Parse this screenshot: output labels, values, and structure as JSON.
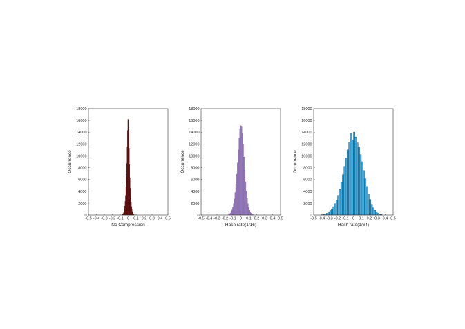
{
  "chart_data": [
    {
      "type": "bar",
      "xlabel": "No Compression",
      "ylabel": "Occurrence",
      "xlim": [
        -0.5,
        0.5
      ],
      "ylim": [
        0,
        18000
      ],
      "xticks": [
        "-0.5",
        "-0.4",
        "-0.3",
        "-0.2",
        "-0.1",
        "0",
        "0.1",
        "0.2",
        "0.3",
        "0.4",
        "0.5"
      ],
      "yticks": [
        "0",
        "2000",
        "4000",
        "6000",
        "8000",
        "10000",
        "12000",
        "14000",
        "16000",
        "18000"
      ],
      "grid": false,
      "color": "#b41e1e",
      "edge_color": "#3a0808",
      "bins": {
        "centers": [
          -0.0725,
          -0.0675,
          -0.0625,
          -0.0575,
          -0.0525,
          -0.0475,
          -0.0425,
          -0.0375,
          -0.0325,
          -0.0275,
          -0.0225,
          -0.0175,
          -0.0125,
          -0.0075,
          -0.0025,
          0.0025,
          0.0075,
          0.0125,
          0.0175,
          0.0225,
          0.0275,
          0.0325,
          0.0375,
          0.0425,
          0.0475,
          0.0525,
          0.0575,
          0.0625,
          0.0675,
          0.0725
        ],
        "values": [
          80,
          150,
          250,
          400,
          650,
          1000,
          1500,
          2300,
          3300,
          4700,
          6500,
          8700,
          11500,
          14300,
          16200,
          16100,
          14200,
          11300,
          8500,
          6300,
          4500,
          3200,
          2200,
          1400,
          950,
          600,
          380,
          230,
          140,
          70
        ]
      }
    },
    {
      "type": "bar",
      "xlabel": "Hash rate(1/16)",
      "ylabel": "Occurrence",
      "xlim": [
        -0.5,
        0.5
      ],
      "ylim": [
        0,
        18000
      ],
      "xticks": [
        "-0.5",
        "-0.4",
        "-0.3",
        "-0.2",
        "-0.1",
        "0",
        "0.1",
        "0.2",
        "0.3",
        "0.4",
        "0.5"
      ],
      "yticks": [
        "0",
        "2000",
        "4000",
        "6000",
        "8000",
        "10000",
        "12000",
        "14000",
        "16000",
        "18000"
      ],
      "grid": false,
      "color": "#9b7fbf",
      "edge_color": "#7a5f9f",
      "bins": {
        "centers": [
          -0.15,
          -0.14,
          -0.13,
          -0.12,
          -0.11,
          -0.1,
          -0.09,
          -0.08,
          -0.07,
          -0.06,
          -0.05,
          -0.04,
          -0.03,
          -0.02,
          -0.01,
          0.0,
          0.01,
          0.02,
          0.03,
          0.04,
          0.05,
          0.06,
          0.07,
          0.08,
          0.09,
          0.1,
          0.11,
          0.12,
          0.13,
          0.14,
          0.15
        ],
        "values": [
          100,
          200,
          350,
          550,
          850,
          1300,
          1900,
          2700,
          3800,
          5200,
          6900,
          8800,
          11000,
          13000,
          14600,
          15100,
          14900,
          13800,
          12000,
          9800,
          7600,
          5600,
          4000,
          2800,
          1900,
          1250,
          800,
          500,
          300,
          180,
          100
        ]
      }
    },
    {
      "type": "bar",
      "xlabel": "Hash rate(1/64)",
      "ylabel": "Occurrence",
      "xlim": [
        -0.5,
        0.5
      ],
      "ylim": [
        0,
        18000
      ],
      "xticks": [
        "-0.5",
        "-0.4",
        "-0.3",
        "-0.2",
        "-0.1",
        "0",
        "0.1",
        "0.2",
        "0.3",
        "0.4",
        "0.5"
      ],
      "yticks": [
        "0",
        "2000",
        "4000",
        "6000",
        "8000",
        "10000",
        "12000",
        "14000",
        "16000",
        "18000"
      ],
      "grid": false,
      "color": "#3ea9db",
      "edge_color": "#0b2a45",
      "bins": {
        "centers": [
          -0.39,
          -0.37,
          -0.35,
          -0.33,
          -0.31,
          -0.29,
          -0.27,
          -0.25,
          -0.23,
          -0.21,
          -0.19,
          -0.17,
          -0.15,
          -0.13,
          -0.11,
          -0.09,
          -0.07,
          -0.05,
          -0.03,
          -0.01,
          0.01,
          0.03,
          0.05,
          0.07,
          0.09,
          0.11,
          0.13,
          0.15,
          0.17,
          0.19,
          0.21,
          0.23,
          0.25,
          0.27,
          0.29,
          0.31,
          0.33,
          0.35
        ],
        "values": [
          50,
          100,
          200,
          300,
          500,
          750,
          1000,
          1400,
          1900,
          2500,
          3300,
          4300,
          5500,
          6800,
          8200,
          9600,
          11000,
          12300,
          13800,
          12700,
          14000,
          13200,
          12200,
          11500,
          10200,
          9000,
          7500,
          6100,
          4800,
          3600,
          2600,
          1800,
          1200,
          800,
          500,
          300,
          150,
          80
        ]
      }
    }
  ]
}
